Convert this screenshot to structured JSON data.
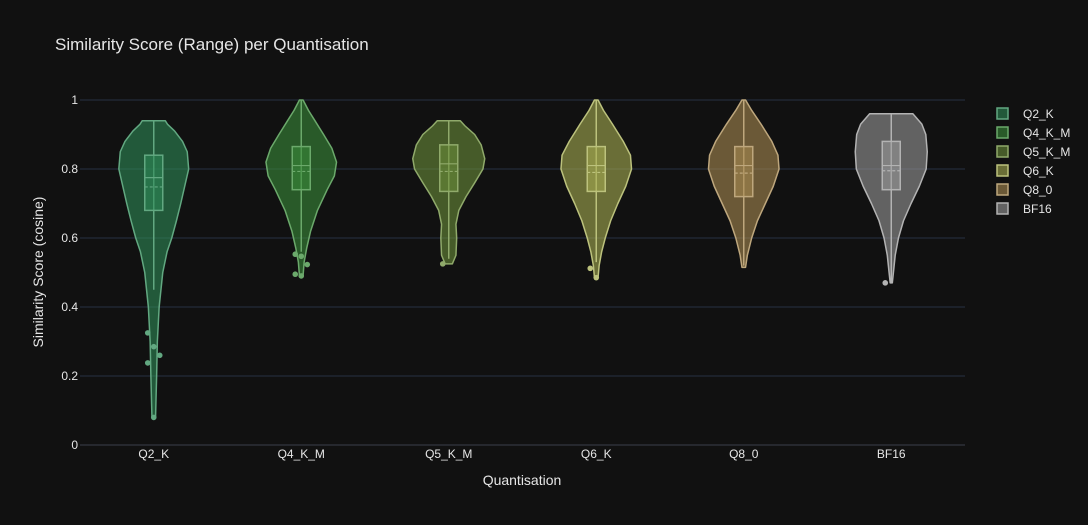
{
  "chart_data": {
    "type": "violin",
    "title": "Similarity Score (Range) per Quantisation",
    "xlabel": "Quantisation",
    "ylabel": "Similarity Score (cosine)",
    "ylim": [
      0,
      1
    ],
    "yticks": [
      0,
      0.2,
      0.4,
      0.6,
      0.8,
      1
    ],
    "ytick_labels": [
      "0",
      "0.2",
      "0.4",
      "0.6",
      "0.8",
      "1"
    ],
    "grid": true,
    "legend_position": "top-right",
    "categories": [
      "Q2_K",
      "Q4_K_M",
      "Q5_K_M",
      "Q6_K",
      "Q8_0",
      "BF16"
    ],
    "series": [
      {
        "name": "Q2_K",
        "color": "#2e8b57",
        "min": 0.08,
        "max": 0.94,
        "q1": 0.68,
        "median": 0.775,
        "q3": 0.84,
        "mean": 0.748,
        "lower_fence": 0.45,
        "upper_fence": 0.94,
        "outliers": [
          0.325,
          0.285,
          0.26,
          0.238,
          0.08
        ],
        "density": [
          [
            0.08,
            0.05
          ],
          [
            0.12,
            0.06
          ],
          [
            0.2,
            0.08
          ],
          [
            0.3,
            0.1
          ],
          [
            0.4,
            0.15
          ],
          [
            0.5,
            0.25
          ],
          [
            0.56,
            0.37
          ],
          [
            0.6,
            0.5
          ],
          [
            0.65,
            0.63
          ],
          [
            0.7,
            0.75
          ],
          [
            0.75,
            0.86
          ],
          [
            0.8,
            0.97
          ],
          [
            0.85,
            0.93
          ],
          [
            0.88,
            0.8
          ],
          [
            0.91,
            0.58
          ],
          [
            0.93,
            0.38
          ],
          [
            0.94,
            0.32
          ]
        ]
      },
      {
        "name": "Q4_K_M",
        "color": "#3a8c3a",
        "min": 0.49,
        "max": 1.0,
        "q1": 0.74,
        "median": 0.81,
        "q3": 0.865,
        "mean": 0.793,
        "lower_fence": 0.56,
        "upper_fence": 1.0,
        "outliers": [
          0.553,
          0.547,
          0.523,
          0.495,
          0.49
        ],
        "density": [
          [
            0.49,
            0.05
          ],
          [
            0.53,
            0.08
          ],
          [
            0.57,
            0.15
          ],
          [
            0.62,
            0.26
          ],
          [
            0.68,
            0.45
          ],
          [
            0.74,
            0.72
          ],
          [
            0.78,
            0.92
          ],
          [
            0.82,
            0.98
          ],
          [
            0.86,
            0.85
          ],
          [
            0.9,
            0.62
          ],
          [
            0.94,
            0.38
          ],
          [
            0.97,
            0.2
          ],
          [
            1.0,
            0.05
          ]
        ]
      },
      {
        "name": "Q5_K_M",
        "color": "#6b8e3a",
        "min": 0.525,
        "max": 0.94,
        "q1": 0.735,
        "median": 0.815,
        "q3": 0.87,
        "mean": 0.793,
        "lower_fence": 0.54,
        "upper_fence": 0.94,
        "outliers": [
          0.525
        ],
        "density": [
          [
            0.525,
            0.1
          ],
          [
            0.55,
            0.2
          ],
          [
            0.6,
            0.22
          ],
          [
            0.64,
            0.2
          ],
          [
            0.68,
            0.28
          ],
          [
            0.72,
            0.48
          ],
          [
            0.76,
            0.72
          ],
          [
            0.8,
            0.95
          ],
          [
            0.83,
            1.0
          ],
          [
            0.87,
            0.9
          ],
          [
            0.9,
            0.72
          ],
          [
            0.925,
            0.45
          ],
          [
            0.94,
            0.32
          ]
        ]
      },
      {
        "name": "Q6_K",
        "color": "#a6ad52",
        "min": 0.485,
        "max": 1.0,
        "q1": 0.735,
        "median": 0.81,
        "q3": 0.865,
        "mean": 0.79,
        "lower_fence": 0.53,
        "upper_fence": 1.0,
        "outliers": [
          0.512,
          0.485
        ],
        "density": [
          [
            0.485,
            0.05
          ],
          [
            0.52,
            0.08
          ],
          [
            0.56,
            0.15
          ],
          [
            0.6,
            0.25
          ],
          [
            0.65,
            0.4
          ],
          [
            0.7,
            0.6
          ],
          [
            0.75,
            0.82
          ],
          [
            0.8,
            0.98
          ],
          [
            0.84,
            0.95
          ],
          [
            0.88,
            0.75
          ],
          [
            0.93,
            0.45
          ],
          [
            0.97,
            0.2
          ],
          [
            1.0,
            0.05
          ]
        ]
      },
      {
        "name": "Q8_0",
        "color": "#a88a52",
        "min": 0.515,
        "max": 1.0,
        "q1": 0.72,
        "median": 0.81,
        "q3": 0.865,
        "mean": 0.788,
        "lower_fence": 0.52,
        "upper_fence": 1.0,
        "outliers": [],
        "density": [
          [
            0.515,
            0.05
          ],
          [
            0.55,
            0.1
          ],
          [
            0.6,
            0.22
          ],
          [
            0.65,
            0.38
          ],
          [
            0.7,
            0.6
          ],
          [
            0.75,
            0.82
          ],
          [
            0.8,
            0.98
          ],
          [
            0.84,
            0.95
          ],
          [
            0.88,
            0.78
          ],
          [
            0.93,
            0.48
          ],
          [
            0.97,
            0.22
          ],
          [
            1.0,
            0.05
          ]
        ]
      },
      {
        "name": "BF16",
        "color": "#9a9a9a",
        "min": 0.47,
        "max": 0.96,
        "q1": 0.74,
        "median": 0.81,
        "q3": 0.88,
        "mean": 0.795,
        "lower_fence": 0.47,
        "upper_fence": 0.96,
        "outliers": [
          0.47
        ],
        "density": [
          [
            0.47,
            0.03
          ],
          [
            0.5,
            0.06
          ],
          [
            0.55,
            0.11
          ],
          [
            0.6,
            0.2
          ],
          [
            0.65,
            0.34
          ],
          [
            0.7,
            0.55
          ],
          [
            0.75,
            0.78
          ],
          [
            0.8,
            0.97
          ],
          [
            0.85,
            1.0
          ],
          [
            0.9,
            0.96
          ],
          [
            0.93,
            0.85
          ],
          [
            0.96,
            0.6
          ]
        ]
      }
    ]
  }
}
